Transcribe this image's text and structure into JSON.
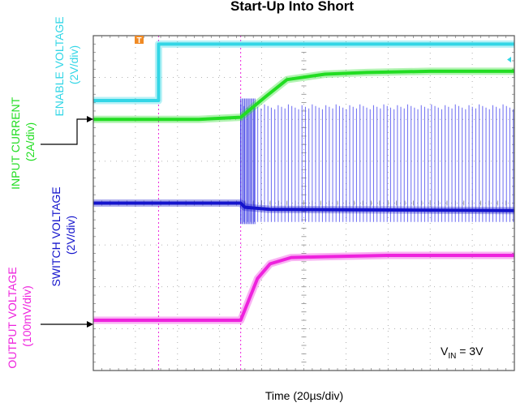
{
  "chart_data": {
    "type": "line",
    "title": "Start-Up Into Short",
    "xlabel": "Time (20µs/div)",
    "x_divisions": 10,
    "y_divisions": 8,
    "grid": true,
    "trigger_marker": "T",
    "annotation": {
      "prefix": "V",
      "subscript": "IN",
      "suffix": " = 3V",
      "placement": "bottom-right"
    },
    "series": [
      {
        "name": "ENABLE VOLTAGE",
        "scale": "(2V/div)",
        "color": "#33d6e6",
        "x_div": [
          0,
          1.55,
          1.55,
          1.65,
          10
        ],
        "y_div": [
          6.45,
          6.45,
          7.8,
          7.8,
          7.8
        ]
      },
      {
        "name": "INPUT CURRENT",
        "scale": "(2A/div)",
        "color": "#22dd22",
        "x_div": [
          0,
          2.5,
          3.5,
          4.1,
          4.6,
          5.5,
          6.5,
          8,
          10
        ],
        "y_div": [
          6.0,
          6.0,
          6.05,
          6.55,
          6.95,
          7.08,
          7.12,
          7.15,
          7.15
        ]
      },
      {
        "name": "SWITCH VOLTAGE",
        "scale": "(2V/div)",
        "color": "#1414cc",
        "x_div": [
          0,
          3.5,
          3.6,
          4.2,
          10
        ],
        "y_div": [
          4.0,
          4.0,
          3.9,
          3.85,
          3.82
        ],
        "switching_envelope": {
          "x_div_start": 3.5,
          "x_div_end": 10,
          "high_div": 6.3
        }
      },
      {
        "name": "OUTPUT VOLTAGE",
        "scale": "(100mV/div)",
        "color": "#ee22dd",
        "x_div": [
          0,
          3.5,
          3.9,
          4.2,
          4.7,
          5.5,
          7,
          10
        ],
        "y_div": [
          1.2,
          1.2,
          2.2,
          2.55,
          2.7,
          2.72,
          2.75,
          2.75
        ]
      }
    ]
  }
}
